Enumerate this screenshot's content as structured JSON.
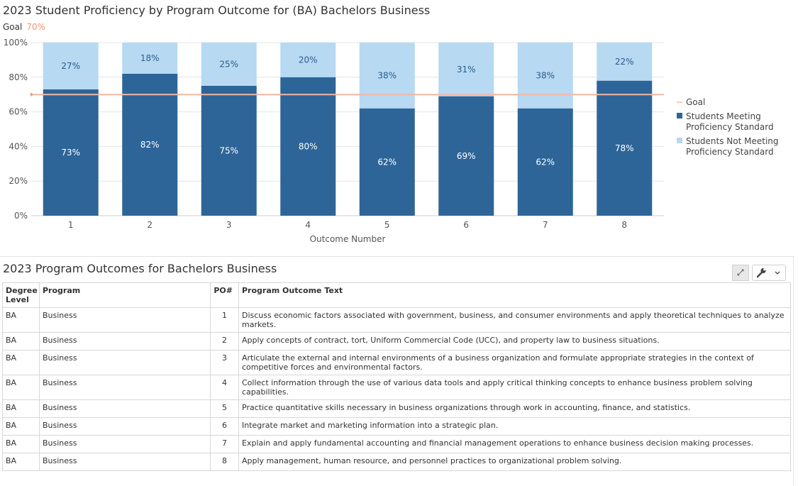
{
  "chart_title": "2023 Student Proficiency by Program Outcome for (BA) Bachelors Business",
  "goal": {
    "label": "Goal",
    "value_text": "70%",
    "value": 70,
    "color": "#f0956d"
  },
  "colors": {
    "meeting": "#2e6598",
    "not_meeting": "#b7d9f2",
    "goal": "#f4b8a4",
    "grid": "#e4e4e4",
    "meeting_label": "#ffffff",
    "not_meeting_label": "#2a5d8f"
  },
  "chart_data": {
    "type": "bar",
    "stacked": true,
    "categories": [
      "1",
      "2",
      "3",
      "4",
      "5",
      "6",
      "7",
      "8"
    ],
    "series": [
      {
        "name": "Students Meeting Proficiency Standard",
        "values": [
          73,
          82,
          75,
          80,
          62,
          69,
          62,
          78
        ]
      },
      {
        "name": "Students Not Meeting Proficiency Standard",
        "values": [
          27,
          18,
          25,
          20,
          38,
          31,
          38,
          22
        ]
      }
    ],
    "reference_line": {
      "name": "Goal",
      "value": 70
    },
    "xlabel": "Outcome Number",
    "ylabel": "",
    "ylim": [
      0,
      100
    ],
    "yticks": [
      "0%",
      "20%",
      "40%",
      "60%",
      "80%",
      "100%"
    ],
    "grid": true,
    "legend_position": "right",
    "legend": [
      {
        "name": "Goal",
        "type": "line"
      },
      {
        "name": "Students Meeting Proficiency Standard",
        "lines": [
          "Students Meeting",
          "Proficiency Standard"
        ],
        "type": "box"
      },
      {
        "name": "Students Not Meeting Proficiency Standard",
        "lines": [
          "Students Not Meeting",
          "Proficiency Standard"
        ],
        "type": "box"
      }
    ]
  },
  "table": {
    "title": "2023 Program Outcomes for Bachelors Business",
    "buttons": {
      "expand_icon": "expand-icon",
      "tools_icon": "wrench-icon",
      "menu_icon": "chevron-down-icon"
    },
    "headers": {
      "degree": "Degree Level",
      "program": "Program",
      "po": "PO#",
      "text": "Program Outcome Text"
    },
    "rows": [
      {
        "degree": "BA",
        "program": "Business",
        "po": "1",
        "text": "Discuss economic factors associated with government, business, and consumer environments and apply theoretical techniques to analyze markets."
      },
      {
        "degree": "BA",
        "program": "Business",
        "po": "2",
        "text": "Apply concepts of contract, tort, Uniform Commercial Code (UCC), and property law to business situations."
      },
      {
        "degree": "BA",
        "program": "Business",
        "po": "3",
        "text": "Articulate the external and internal environments of a business organization and formulate appropriate strategies in the context of competitive forces and environmental factors."
      },
      {
        "degree": "BA",
        "program": "Business",
        "po": "4",
        "text": "Collect information through the use of various data tools and apply critical thinking concepts to enhance business problem solving capabilities."
      },
      {
        "degree": "BA",
        "program": "Business",
        "po": "5",
        "text": "Practice quantitative skills necessary in business organizations through work in accounting, finance, and statistics."
      },
      {
        "degree": "BA",
        "program": "Business",
        "po": "6",
        "text": "Integrate market and marketing information into a strategic plan."
      },
      {
        "degree": "BA",
        "program": "Business",
        "po": "7",
        "text": "Explain and apply fundamental accounting and financial management operations to enhance business decision making processes."
      },
      {
        "degree": "BA",
        "program": "Business",
        "po": "8",
        "text": "Apply management, human resource, and personnel practices to organizational problem solving."
      }
    ]
  }
}
